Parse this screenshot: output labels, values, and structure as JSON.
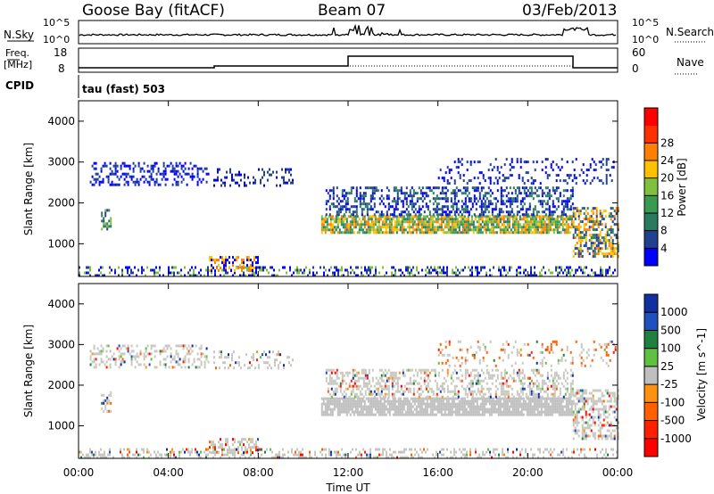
{
  "header": {
    "radar": "Goose Bay (fitACF)",
    "beam": "Beam 07",
    "date": "03/Feb/2013"
  },
  "nsky_label": "N.Sky",
  "nsearch_label": "N.Search",
  "freq_label_1": "Freq.",
  "freq_label_2": "[MHz]",
  "cpid_label": "CPID",
  "nave_label": "Nave",
  "cpid_text": "tau (fast) 503",
  "top_ticks": {
    "nsky_left_top": "10^5",
    "nsky_left_bottom": "10^0",
    "nsky_right_top": "10^5",
    "nsky_right_bottom": "10^0",
    "freq_top": "18",
    "freq_bottom": "8",
    "nave_top": "60",
    "nave_bottom": "0"
  },
  "colors": {
    "power": [
      "#0000ff",
      "#204090",
      "#2a7a60",
      "#3a9a50",
      "#7fc040",
      "#ffc000",
      "#ff8000",
      "#ff3000",
      "#ff0000"
    ],
    "velocity": [
      "#1030a0",
      "#2050c0",
      "#208040",
      "#60c040",
      "#bfbfbf",
      "#ff9010",
      "#ff6000",
      "#ff2000",
      "#ff0000"
    ]
  },
  "chart_data": [
    {
      "type": "heatmap",
      "title": "Power",
      "ylabel": "Slant Range [km]",
      "ylim": [
        200,
        4500
      ],
      "yticks": [
        "1000",
        "2000",
        "3000",
        "4000"
      ],
      "colorbar_label": "Power [dB]",
      "colorbar_ticks": [
        "4",
        "8",
        "12",
        "16",
        "20",
        "24",
        "28"
      ]
    },
    {
      "type": "heatmap",
      "title": "Velocity",
      "ylabel": "Slant Range [km]",
      "ylim": [
        200,
        4500
      ],
      "yticks": [
        "1000",
        "2000",
        "3000",
        "4000"
      ],
      "colorbar_label": "Velocity [m s^-1]",
      "colorbar_ticks": [
        "1000",
        "500",
        "100",
        "25",
        "-25",
        "-100",
        "-500",
        "-1000"
      ],
      "xlabel": "Time UT",
      "xticks": [
        "00:00",
        "04:00",
        "08:00",
        "12:00",
        "16:00",
        "20:00",
        "00:00"
      ],
      "xlim_hours": [
        0,
        24
      ]
    }
  ]
}
